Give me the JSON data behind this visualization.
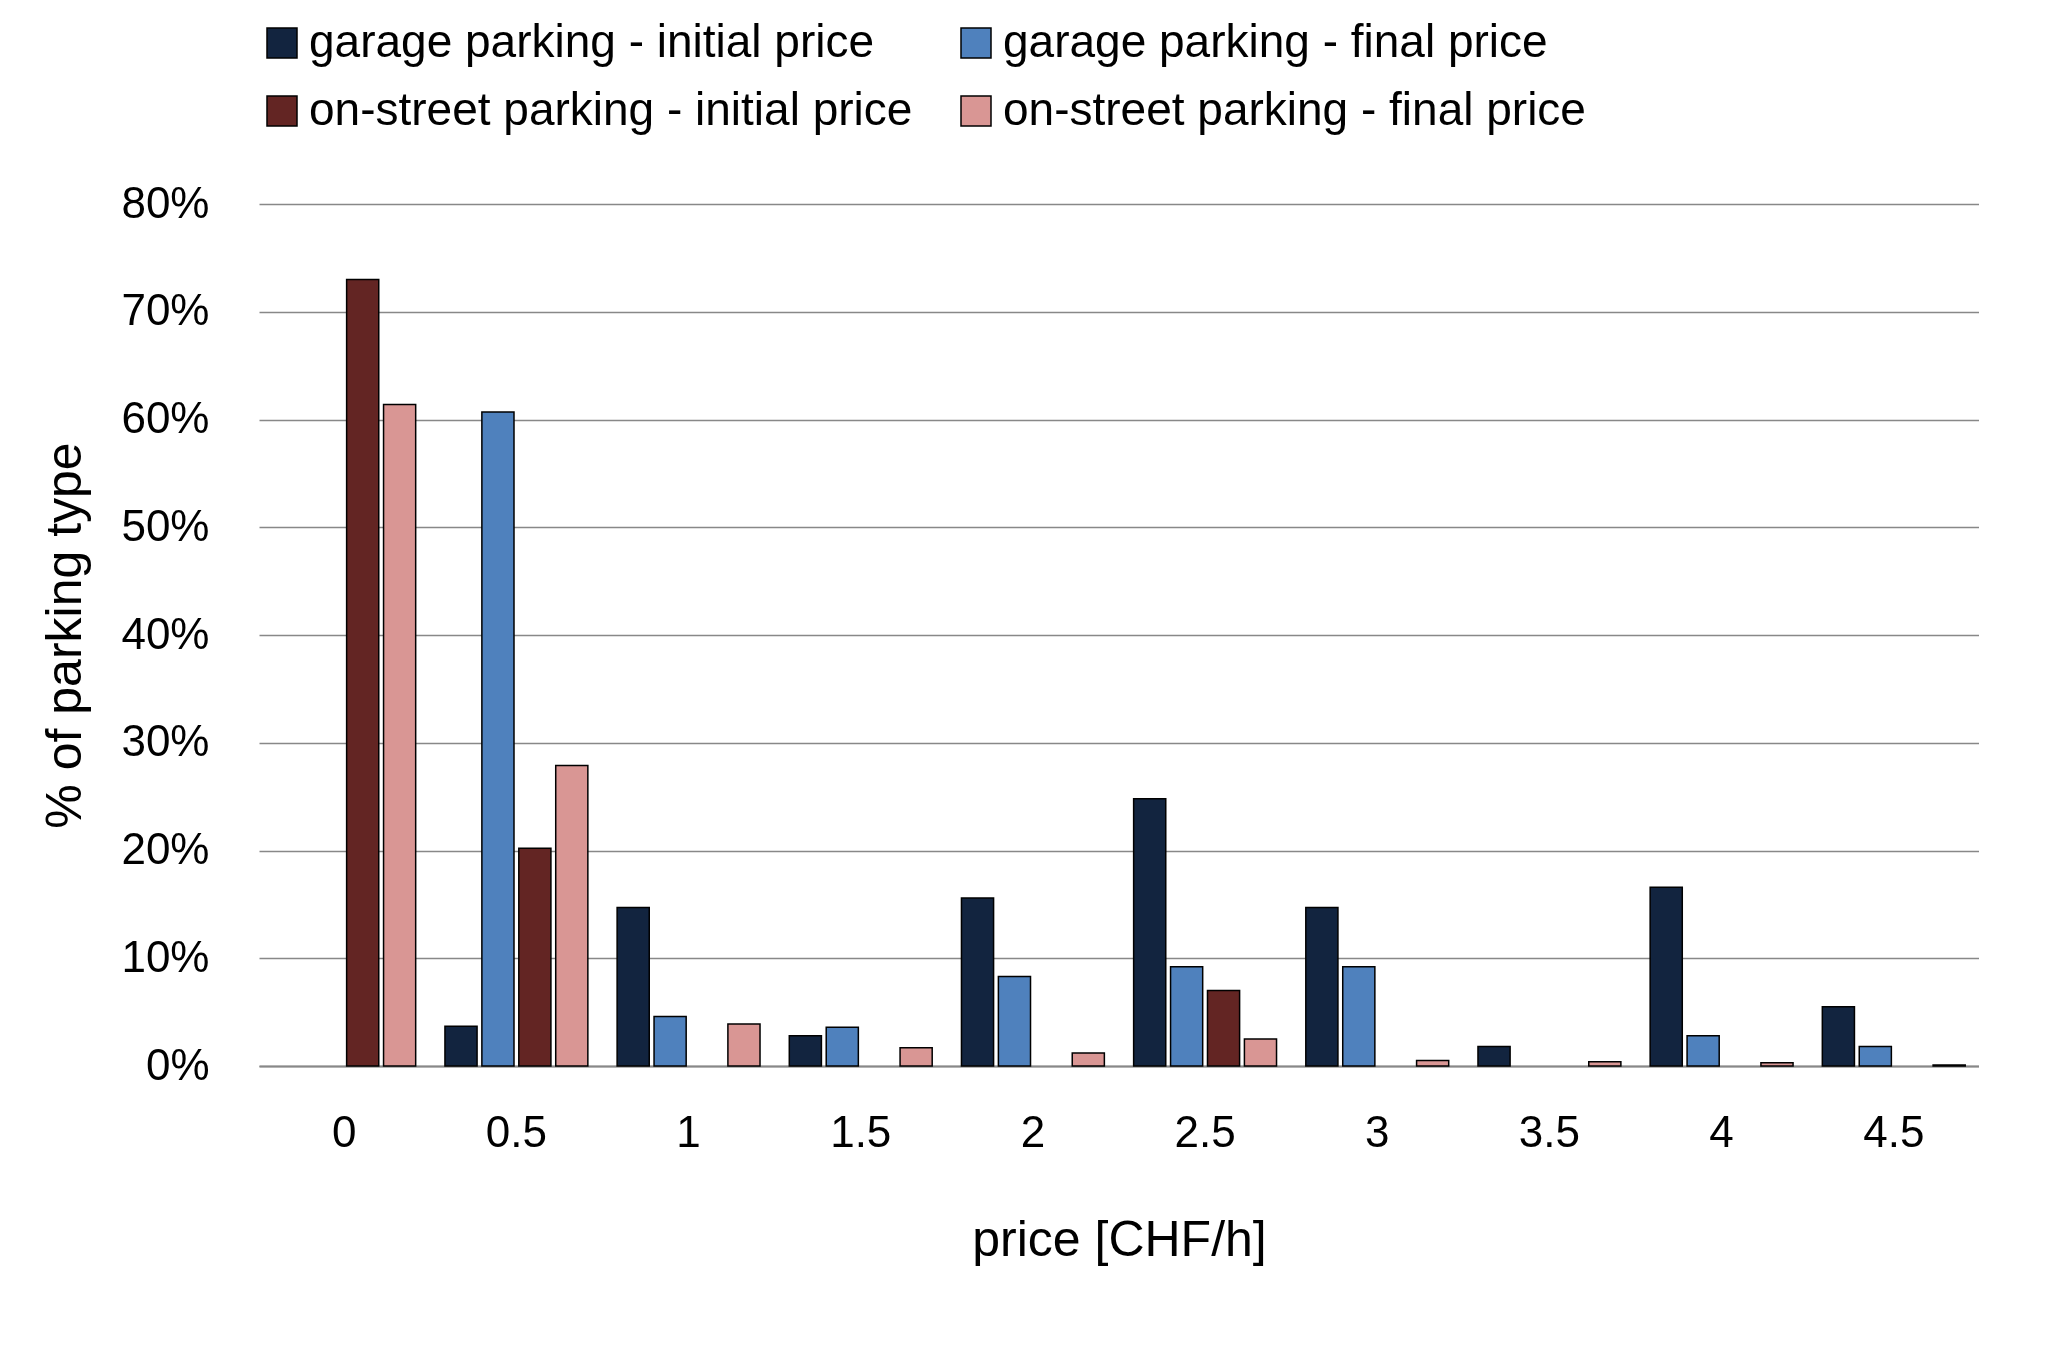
{
  "chart_data": {
    "type": "bar",
    "xlabel": "price [CHF/h]",
    "ylabel": "% of parking type",
    "categories": [
      "0",
      "0.5",
      "1",
      "1.5",
      "2",
      "2.5",
      "3",
      "3.5",
      "4",
      "4.5"
    ],
    "series": [
      {
        "name": "garage parking - initial price",
        "color": "#12243f",
        "values": [
          null,
          3.7,
          14.7,
          2.8,
          15.6,
          24.8,
          14.7,
          1.8,
          16.6,
          5.5
        ]
      },
      {
        "name": "garage parking - final price",
        "color": "#4f81bd",
        "values": [
          null,
          60.7,
          4.6,
          3.6,
          8.3,
          9.2,
          9.2,
          null,
          2.8,
          1.8
        ]
      },
      {
        "name": "on-street parking - initial price",
        "color": "#632523",
        "values": [
          73,
          20.2,
          null,
          null,
          null,
          7.0,
          null,
          null,
          null,
          null
        ]
      },
      {
        "name": "on-street parking - final price",
        "color": "#d99694",
        "values": [
          61.4,
          27.9,
          3.9,
          1.7,
          1.2,
          2.5,
          0.5,
          0.4,
          0.3,
          0.1
        ]
      }
    ],
    "ylim": [
      0,
      80
    ],
    "yticks": [
      {
        "value": 0,
        "label": "0%"
      },
      {
        "value": 10,
        "label": "10%"
      },
      {
        "value": 20,
        "label": "20%"
      },
      {
        "value": 30,
        "label": "30%"
      },
      {
        "value": 40,
        "label": "40%"
      },
      {
        "value": 50,
        "label": "50%"
      },
      {
        "value": 60,
        "label": "60%"
      },
      {
        "value": 70,
        "label": "70%"
      },
      {
        "value": 80,
        "label": "80%"
      }
    ],
    "grid": "y",
    "legend": "top"
  }
}
